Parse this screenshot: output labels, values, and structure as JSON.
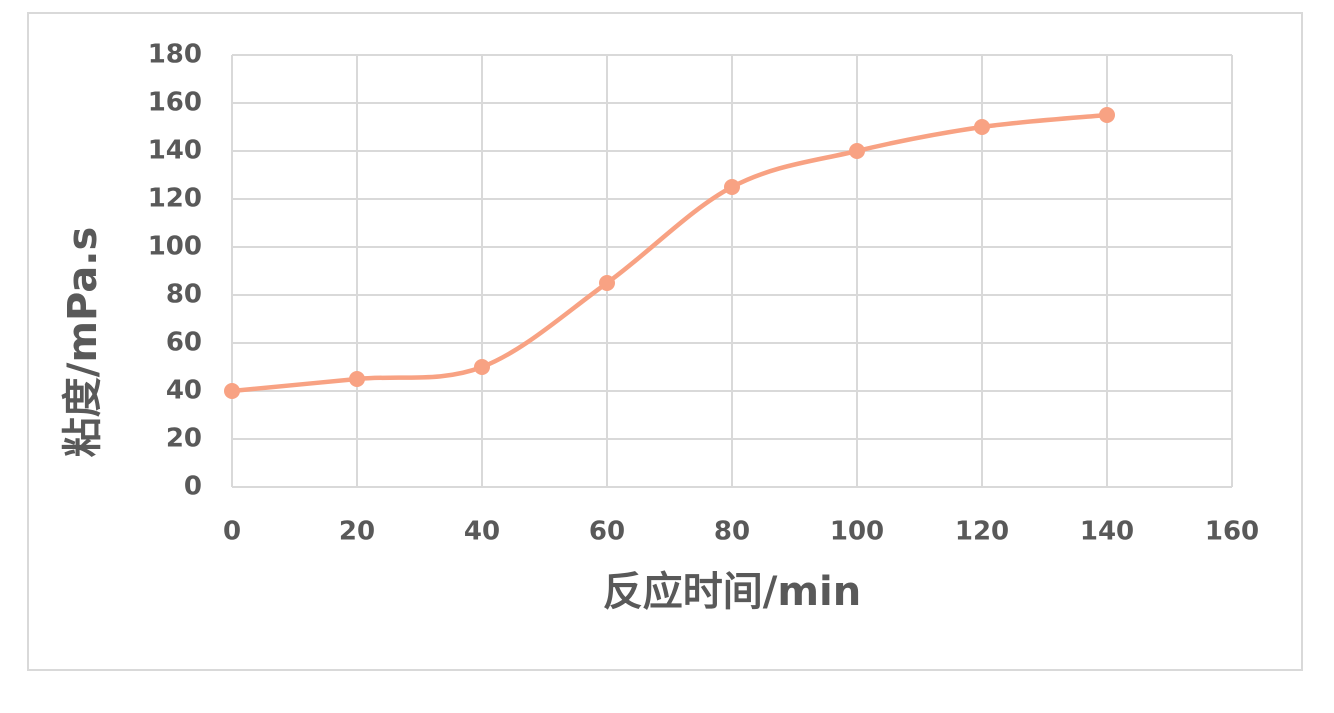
{
  "chart_data": {
    "type": "line",
    "x_label": "反应时间/min",
    "y_label": "粘度/mPa.s",
    "x": [
      0,
      20,
      40,
      60,
      80,
      100,
      120,
      140
    ],
    "series": [
      {
        "color": "#f8a283",
        "values": [
          40,
          45,
          50,
          85,
          125,
          140,
          150,
          155
        ]
      }
    ],
    "xlim": [
      0,
      160
    ],
    "xticks": [
      0,
      20,
      40,
      60,
      80,
      100,
      120,
      140,
      160
    ],
    "ylim": [
      0,
      180
    ],
    "yticks": [
      0,
      20,
      40,
      60,
      80,
      100,
      120,
      140,
      160,
      180
    ],
    "grid": true,
    "smooth": true,
    "markers": true
  }
}
